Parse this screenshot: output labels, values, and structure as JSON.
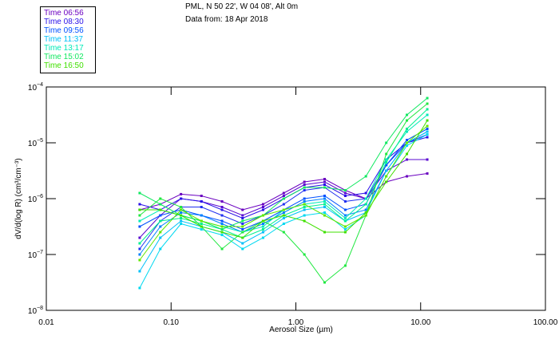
{
  "header": {
    "title_line1": "PML, N 50 22', W 04 08', Alt 0m",
    "title_line2": "Data from: 18 Apr 2018"
  },
  "chart_data": {
    "type": "line",
    "title": "PML, N 50 22', W 04 08', Alt 0m",
    "subtitle": "Data from: 18 Apr 2018",
    "xlabel": "Aerosol Size (µm)",
    "ylabel": "dV/d(log R) (cm³/cm⁻³)",
    "xscale": "log",
    "yscale": "log",
    "xlim": [
      0.01,
      100
    ],
    "ylim": [
      1e-08,
      0.0001
    ],
    "x_tick_labels": [
      "0.01",
      "0.10",
      "1.00",
      "10.00",
      "100.00"
    ],
    "x_ticks": [
      0.01,
      0.1,
      1,
      10,
      100
    ],
    "y_ticks": [
      {
        "value": 0.0001,
        "base": "10",
        "exp": "−4"
      },
      {
        "value": 1e-05,
        "base": "10",
        "exp": "−5"
      },
      {
        "value": 1e-06,
        "base": "10",
        "exp": "−6"
      },
      {
        "value": 1e-07,
        "base": "10",
        "exp": "−7"
      },
      {
        "value": 1e-08,
        "base": "10",
        "exp": "−8"
      }
    ],
    "grid": false,
    "legend_position": "top-left-outside",
    "legend": [
      {
        "label": "Time 06:56",
        "color": "#6a00c0"
      },
      {
        "label": "Time 08:30",
        "color": "#2a10e8"
      },
      {
        "label": "Time 09:56",
        "color": "#0050ff"
      },
      {
        "label": "Time 11:37",
        "color": "#00c0f8"
      },
      {
        "label": "Time 13:17",
        "color": "#00eab8"
      },
      {
        "label": "Time 15:02",
        "color": "#10e860"
      },
      {
        "label": "Time 16:50",
        "color": "#40e000"
      }
    ],
    "value_scale": "log10",
    "x": [
      0.056,
      0.082,
      0.12,
      0.175,
      0.256,
      0.374,
      0.546,
      0.8,
      1.17,
      1.7,
      2.49,
      3.64,
      5.3,
      7.76,
      11.3
    ],
    "series": [
      {
        "name": "Time 06:56",
        "color": "#6a00c0",
        "log10_values": [
          -6.2,
          -6.1,
          -5.92,
          -5.95,
          -6.05,
          -6.2,
          -6.1,
          -5.9,
          -5.7,
          -5.65,
          -5.85,
          -6.0,
          -5.7,
          -5.6,
          -5.55
        ]
      },
      {
        "name": "Time 06:56 b",
        "color": "#5a08d0",
        "log10_values": [
          -6.7,
          -6.3,
          -6.0,
          -6.05,
          -6.15,
          -6.3,
          -6.15,
          -5.95,
          -5.75,
          -5.7,
          -5.9,
          -6.0,
          -5.5,
          -5.3,
          -5.3
        ]
      },
      {
        "name": "Time 08:30",
        "color": "#2a10e8",
        "log10_values": [
          -6.1,
          -6.2,
          -6.0,
          -6.05,
          -6.2,
          -6.35,
          -6.2,
          -6.0,
          -5.8,
          -5.75,
          -5.95,
          -5.9,
          -5.3,
          -5.0,
          -4.9
        ]
      },
      {
        "name": "Time 08:30 b",
        "color": "#2030f0",
        "log10_values": [
          -6.9,
          -6.4,
          -6.15,
          -6.15,
          -6.3,
          -6.45,
          -6.3,
          -6.1,
          -5.85,
          -5.8,
          -6.05,
          -6.0,
          -5.4,
          -5.0,
          -4.85
        ]
      },
      {
        "name": "Time 09:56",
        "color": "#0050ff",
        "log10_values": [
          -6.5,
          -6.3,
          -6.2,
          -6.3,
          -6.4,
          -6.55,
          -6.4,
          -6.2,
          -6.0,
          -5.95,
          -6.2,
          -6.1,
          -5.4,
          -4.95,
          -4.75
        ]
      },
      {
        "name": "Time 09:56 b",
        "color": "#0080ff",
        "log10_values": [
          -7.0,
          -6.5,
          -6.25,
          -6.3,
          -6.45,
          -6.6,
          -6.45,
          -6.25,
          -6.05,
          -6.0,
          -6.3,
          -6.2,
          -5.5,
          -5.0,
          -4.8
        ]
      },
      {
        "name": "Time 11:37",
        "color": "#00c0f8",
        "log10_values": [
          -7.3,
          -6.7,
          -6.4,
          -6.5,
          -6.6,
          -6.8,
          -6.6,
          -6.35,
          -6.2,
          -6.15,
          -6.4,
          -6.25,
          -5.5,
          -5.0,
          -4.8
        ]
      },
      {
        "name": "Time 11:37 b",
        "color": "#00d8f0",
        "log10_values": [
          -7.6,
          -6.9,
          -6.45,
          -6.55,
          -6.65,
          -6.9,
          -6.7,
          -6.45,
          -6.3,
          -6.25,
          -6.55,
          -6.3,
          -5.6,
          -5.05,
          -4.85
        ]
      },
      {
        "name": "Time 13:17",
        "color": "#00eab8",
        "log10_values": [
          -6.4,
          -6.2,
          -6.3,
          -6.4,
          -6.5,
          -6.6,
          -6.5,
          -6.2,
          -6.1,
          -6.05,
          -6.35,
          -6.0,
          -5.3,
          -4.8,
          -4.5
        ]
      },
      {
        "name": "Time 13:17 b",
        "color": "#00f090",
        "log10_values": [
          -6.8,
          -6.4,
          -6.35,
          -6.45,
          -6.55,
          -6.7,
          -6.55,
          -6.3,
          -6.15,
          -6.1,
          -6.4,
          -6.1,
          -5.35,
          -4.75,
          -4.4
        ]
      },
      {
        "name": "Time 15:02",
        "color": "#10e860",
        "log10_values": [
          -5.9,
          -6.1,
          -6.3,
          -6.4,
          -6.55,
          -6.4,
          -6.3,
          -6.0,
          -5.8,
          -5.8,
          -5.85,
          -5.6,
          -5.0,
          -4.5,
          -4.2
        ]
      },
      {
        "name": "Time 15:02 b",
        "color": "#20e840",
        "log10_values": [
          -6.3,
          -6.0,
          -6.15,
          -6.5,
          -6.9,
          -6.6,
          -6.4,
          -6.6,
          -7.0,
          -7.5,
          -7.2,
          -6.3,
          -5.2,
          -4.6,
          -4.3
        ]
      },
      {
        "name": "Time 16:50",
        "color": "#40e000",
        "log10_values": [
          -6.2,
          -6.2,
          -6.3,
          -6.5,
          -6.6,
          -6.7,
          -6.4,
          -6.3,
          -6.4,
          -6.6,
          -6.6,
          -6.25,
          -5.7,
          -5.2,
          -4.6
        ]
      },
      {
        "name": "Time 16:50 b",
        "color": "#60e800",
        "log10_values": [
          -7.1,
          -6.6,
          -6.2,
          -6.4,
          -6.5,
          -6.5,
          -6.3,
          -6.2,
          -6.1,
          -6.3,
          -6.5,
          -6.3,
          -5.6,
          -5.0,
          -4.7
        ]
      }
    ]
  }
}
